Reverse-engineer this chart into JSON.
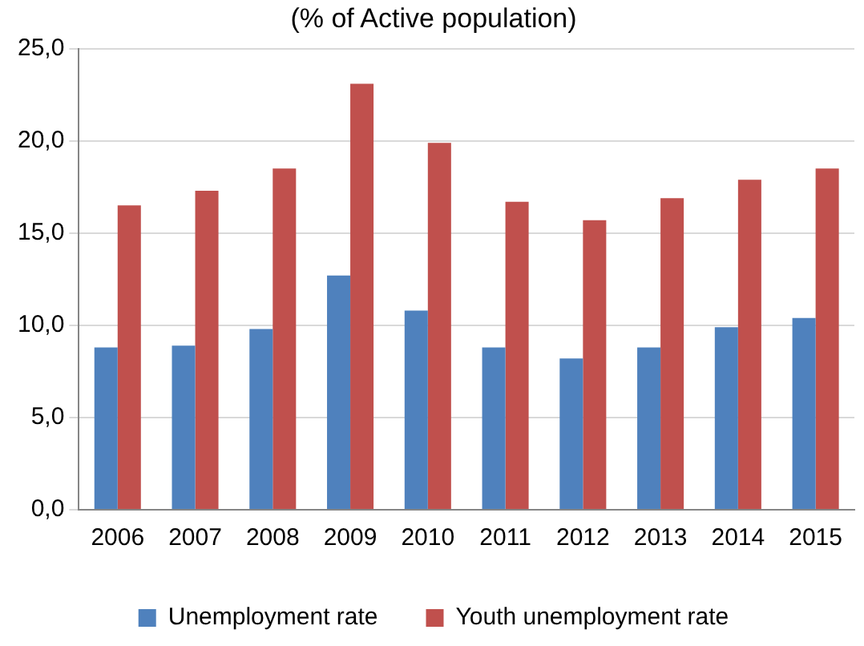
{
  "chart_data": {
    "type": "bar",
    "title": "(% of Active population)",
    "categories": [
      "2006",
      "2007",
      "2008",
      "2009",
      "2010",
      "2011",
      "2012",
      "2013",
      "2014",
      "2015"
    ],
    "series": [
      {
        "name": "Unemployment rate",
        "color": "#4f81bd",
        "values": [
          8.8,
          8.9,
          9.8,
          12.7,
          10.8,
          8.8,
          8.2,
          8.8,
          9.9,
          10.4
        ]
      },
      {
        "name": "Youth unemployment rate",
        "color": "#c0504d",
        "values": [
          16.5,
          17.3,
          18.5,
          23.1,
          19.9,
          16.7,
          15.7,
          16.9,
          17.9,
          18.5
        ]
      }
    ],
    "ylim": [
      0,
      25
    ],
    "yticks": [
      {
        "value": 0,
        "label": "0,0"
      },
      {
        "value": 5,
        "label": "5,0"
      },
      {
        "value": 10,
        "label": "10,0"
      },
      {
        "value": 15,
        "label": "15,0"
      },
      {
        "value": 20,
        "label": "20,0"
      },
      {
        "value": 25,
        "label": "25,0"
      }
    ],
    "grid": "y",
    "legend": "bottom"
  }
}
